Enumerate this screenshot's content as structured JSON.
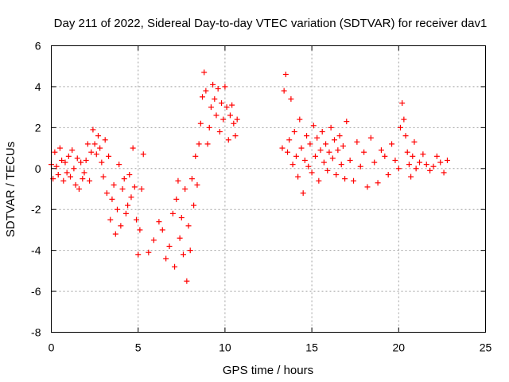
{
  "chart_data": {
    "type": "scatter",
    "title": "Day 211 of 2022, Sidereal Day-to-day VTEC variation (SDTVAR) for receiver dav1",
    "xlabel": "GPS time / hours",
    "ylabel": "SDTVAR / TECUs",
    "xlim": [
      0,
      25
    ],
    "ylim": [
      -8,
      6
    ],
    "xticks": [
      0,
      5,
      10,
      15,
      20,
      25
    ],
    "yticks": [
      -8,
      -6,
      -4,
      -2,
      0,
      2,
      4,
      6
    ],
    "x_tick_labels": [
      "0",
      "5",
      "10",
      "15",
      "20",
      "25"
    ],
    "y_tick_labels": [
      "-8",
      "-6",
      "-4",
      "-2",
      "0",
      "2",
      "4",
      "6"
    ],
    "grid": true,
    "marker": "+",
    "color": "#ff0000",
    "series": [
      {
        "name": "SDTVAR",
        "x": [
          0.0,
          0.1,
          0.2,
          0.3,
          0.4,
          0.5,
          0.6,
          0.7,
          0.8,
          0.9,
          1.0,
          1.1,
          1.2,
          1.3,
          1.4,
          1.5,
          1.6,
          1.7,
          1.8,
          1.9,
          2.0,
          2.1,
          2.2,
          2.3,
          2.4,
          2.5,
          2.6,
          2.7,
          2.8,
          2.9,
          3.0,
          3.1,
          3.2,
          3.3,
          3.4,
          3.5,
          3.6,
          3.7,
          3.8,
          3.9,
          4.0,
          4.1,
          4.2,
          4.3,
          4.4,
          4.5,
          4.6,
          4.7,
          4.8,
          4.9,
          5.0,
          5.1,
          5.2,
          5.3,
          5.6,
          5.9,
          6.2,
          6.4,
          6.6,
          6.8,
          7.0,
          7.1,
          7.2,
          7.3,
          7.4,
          7.5,
          7.6,
          7.7,
          7.8,
          7.9,
          8.0,
          8.1,
          8.2,
          8.3,
          8.4,
          8.5,
          8.6,
          8.7,
          8.8,
          8.9,
          9.0,
          9.1,
          9.2,
          9.3,
          9.4,
          9.5,
          9.6,
          9.7,
          9.8,
          9.9,
          10.0,
          10.1,
          10.2,
          10.3,
          10.4,
          10.5,
          10.6,
          10.7,
          13.3,
          13.4,
          13.5,
          13.6,
          13.7,
          13.8,
          13.9,
          14.0,
          14.1,
          14.2,
          14.3,
          14.4,
          14.5,
          14.6,
          14.7,
          14.8,
          14.9,
          15.0,
          15.1,
          15.2,
          15.3,
          15.4,
          15.5,
          15.6,
          15.7,
          15.8,
          15.9,
          16.0,
          16.1,
          16.2,
          16.3,
          16.4,
          16.5,
          16.6,
          16.7,
          16.8,
          16.9,
          17.0,
          17.2,
          17.4,
          17.6,
          17.8,
          18.0,
          18.2,
          18.4,
          18.6,
          18.8,
          19.0,
          19.2,
          19.4,
          19.6,
          19.8,
          20.0,
          20.1,
          20.2,
          20.3,
          20.4,
          20.5,
          20.6,
          20.7,
          20.8,
          20.9,
          21.0,
          21.2,
          21.4,
          21.6,
          21.8,
          22.0,
          22.2,
          22.4,
          22.6,
          22.8
        ],
        "y": [
          0.2,
          -0.5,
          0.8,
          0.1,
          -0.3,
          1.0,
          0.4,
          -0.6,
          0.3,
          -0.2,
          0.6,
          -0.4,
          0.9,
          0.0,
          -0.8,
          0.5,
          -1.0,
          0.3,
          -0.5,
          -0.2,
          0.4,
          1.2,
          -0.6,
          0.8,
          1.9,
          1.2,
          0.7,
          1.6,
          1.0,
          0.3,
          -0.4,
          1.4,
          -1.2,
          0.6,
          -2.5,
          -1.5,
          -0.8,
          -3.2,
          -2.0,
          0.2,
          -2.8,
          -1.0,
          -0.5,
          -2.2,
          -1.8,
          -0.3,
          -1.4,
          1.0,
          -0.9,
          -2.5,
          -4.2,
          -3.0,
          -1.0,
          0.7,
          -4.1,
          -3.5,
          -2.6,
          -3.0,
          -4.4,
          -3.8,
          -2.2,
          -4.8,
          -1.5,
          -0.6,
          -3.4,
          -2.4,
          -4.2,
          -1.0,
          -5.5,
          -2.8,
          -4.0,
          -0.5,
          -1.8,
          0.6,
          -0.8,
          1.2,
          2.2,
          3.5,
          4.7,
          3.8,
          1.2,
          2.0,
          3.0,
          4.1,
          3.4,
          2.6,
          3.9,
          1.8,
          3.2,
          2.4,
          4.0,
          3.0,
          1.4,
          2.6,
          3.1,
          2.2,
          1.6,
          2.4,
          1.0,
          3.8,
          4.6,
          0.8,
          1.4,
          3.4,
          0.2,
          1.8,
          0.6,
          -0.4,
          2.4,
          1.0,
          -1.2,
          0.4,
          1.6,
          0.1,
          1.2,
          -0.2,
          2.1,
          0.6,
          1.5,
          -0.6,
          0.9,
          1.8,
          0.3,
          1.2,
          -0.1,
          0.8,
          2.0,
          0.5,
          1.4,
          -0.3,
          0.9,
          1.6,
          0.2,
          1.1,
          -0.5,
          2.3,
          0.4,
          -0.6,
          1.3,
          0.1,
          0.8,
          -0.9,
          1.5,
          0.3,
          -0.7,
          0.9,
          0.6,
          -0.3,
          1.2,
          0.4,
          0.0,
          2.0,
          3.2,
          2.4,
          1.6,
          0.8,
          0.2,
          -0.4,
          0.6,
          1.3,
          0.0,
          0.3,
          0.7,
          0.2,
          -0.1,
          0.1,
          0.6,
          0.3,
          -0.2,
          0.4
        ]
      }
    ]
  }
}
